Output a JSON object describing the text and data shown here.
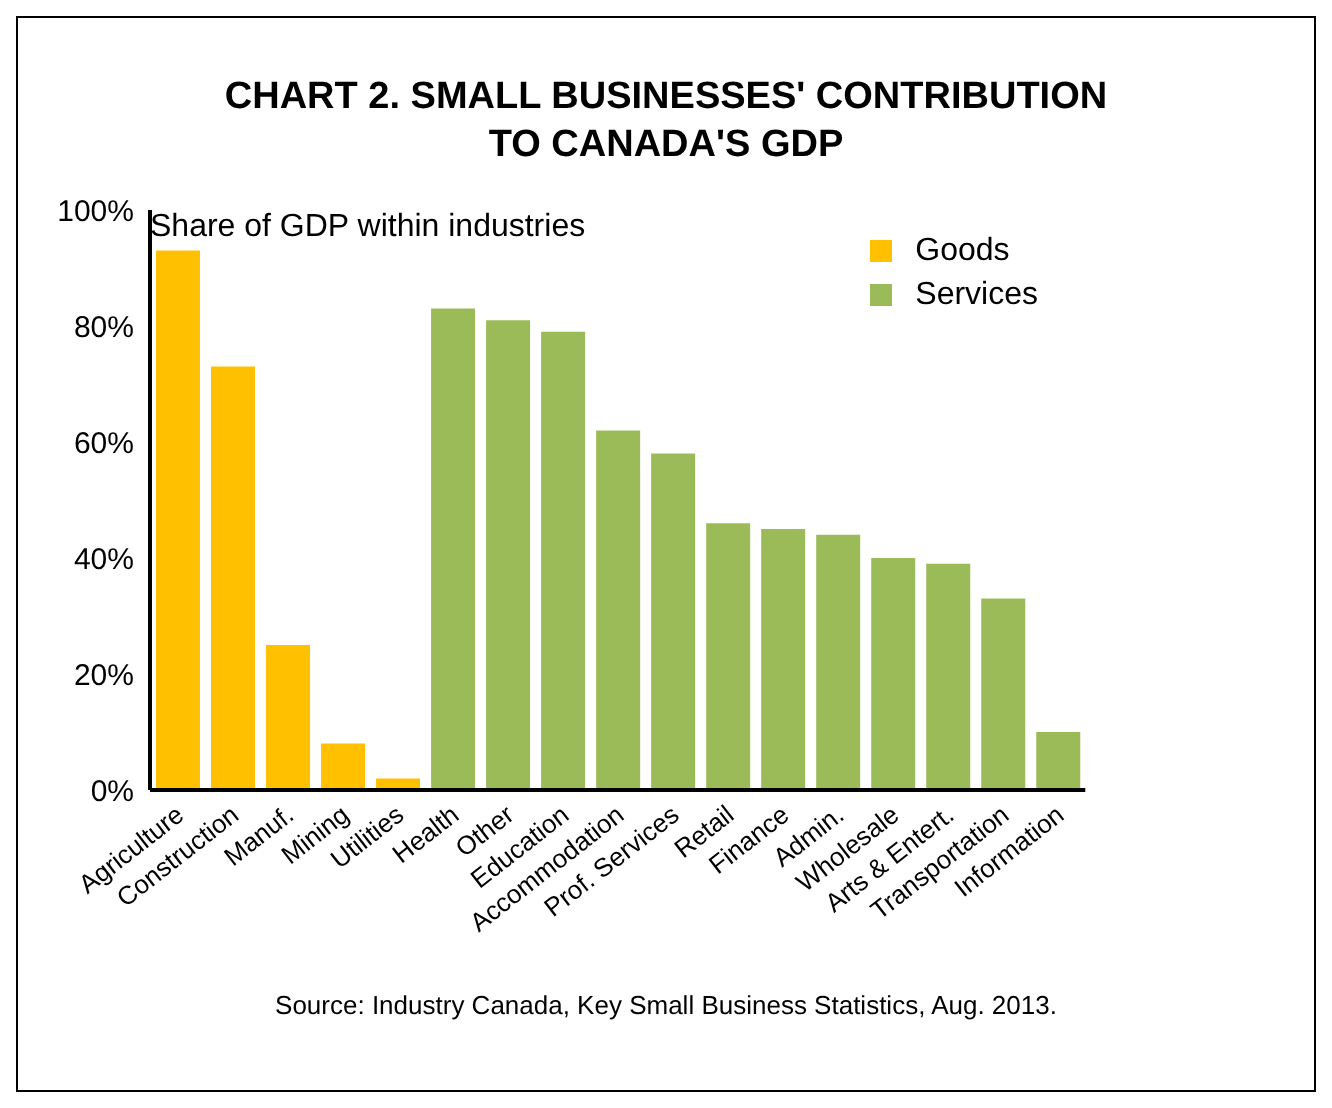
{
  "chart_data": {
    "type": "bar",
    "title": "CHART 2. SMALL BUSINESSES' CONTRIBUTION\nTO CANADA'S GDP",
    "ylabel": "Share of GDP within industries",
    "categories": [
      "Agriculture",
      "Construction",
      "Manuf.",
      "Mining",
      "Utilities",
      "Health",
      "Other",
      "Education",
      "Accommodation",
      "Prof. Services",
      "Retail",
      "Finance",
      "Admin.",
      "Wholesale",
      "Arts & Entert.",
      "Transportation",
      "Information"
    ],
    "series": [
      {
        "name": "Goods",
        "color": "#ffc000",
        "values": [
          93,
          73,
          25,
          8,
          2,
          null,
          null,
          null,
          null,
          null,
          null,
          null,
          null,
          null,
          null,
          null,
          null
        ]
      },
      {
        "name": "Services",
        "color": "#9bbb59",
        "values": [
          null,
          null,
          null,
          null,
          null,
          83,
          81,
          79,
          62,
          58,
          46,
          45,
          44,
          40,
          39,
          33,
          10
        ]
      }
    ],
    "stacked": true,
    "ylim": [
      0,
      100
    ],
    "yticks": [
      {
        "value": 0,
        "label": "0%"
      },
      {
        "value": 20,
        "label": "20%"
      },
      {
        "value": 40,
        "label": "40%"
      },
      {
        "value": 60,
        "label": "60%"
      },
      {
        "value": 80,
        "label": "80%"
      },
      {
        "value": 100,
        "label": "100%"
      }
    ],
    "grid": false,
    "legend": "top right",
    "annotations": [
      "Source: Industry Canada, Key Small Business Statistics, Aug. 2013."
    ]
  }
}
